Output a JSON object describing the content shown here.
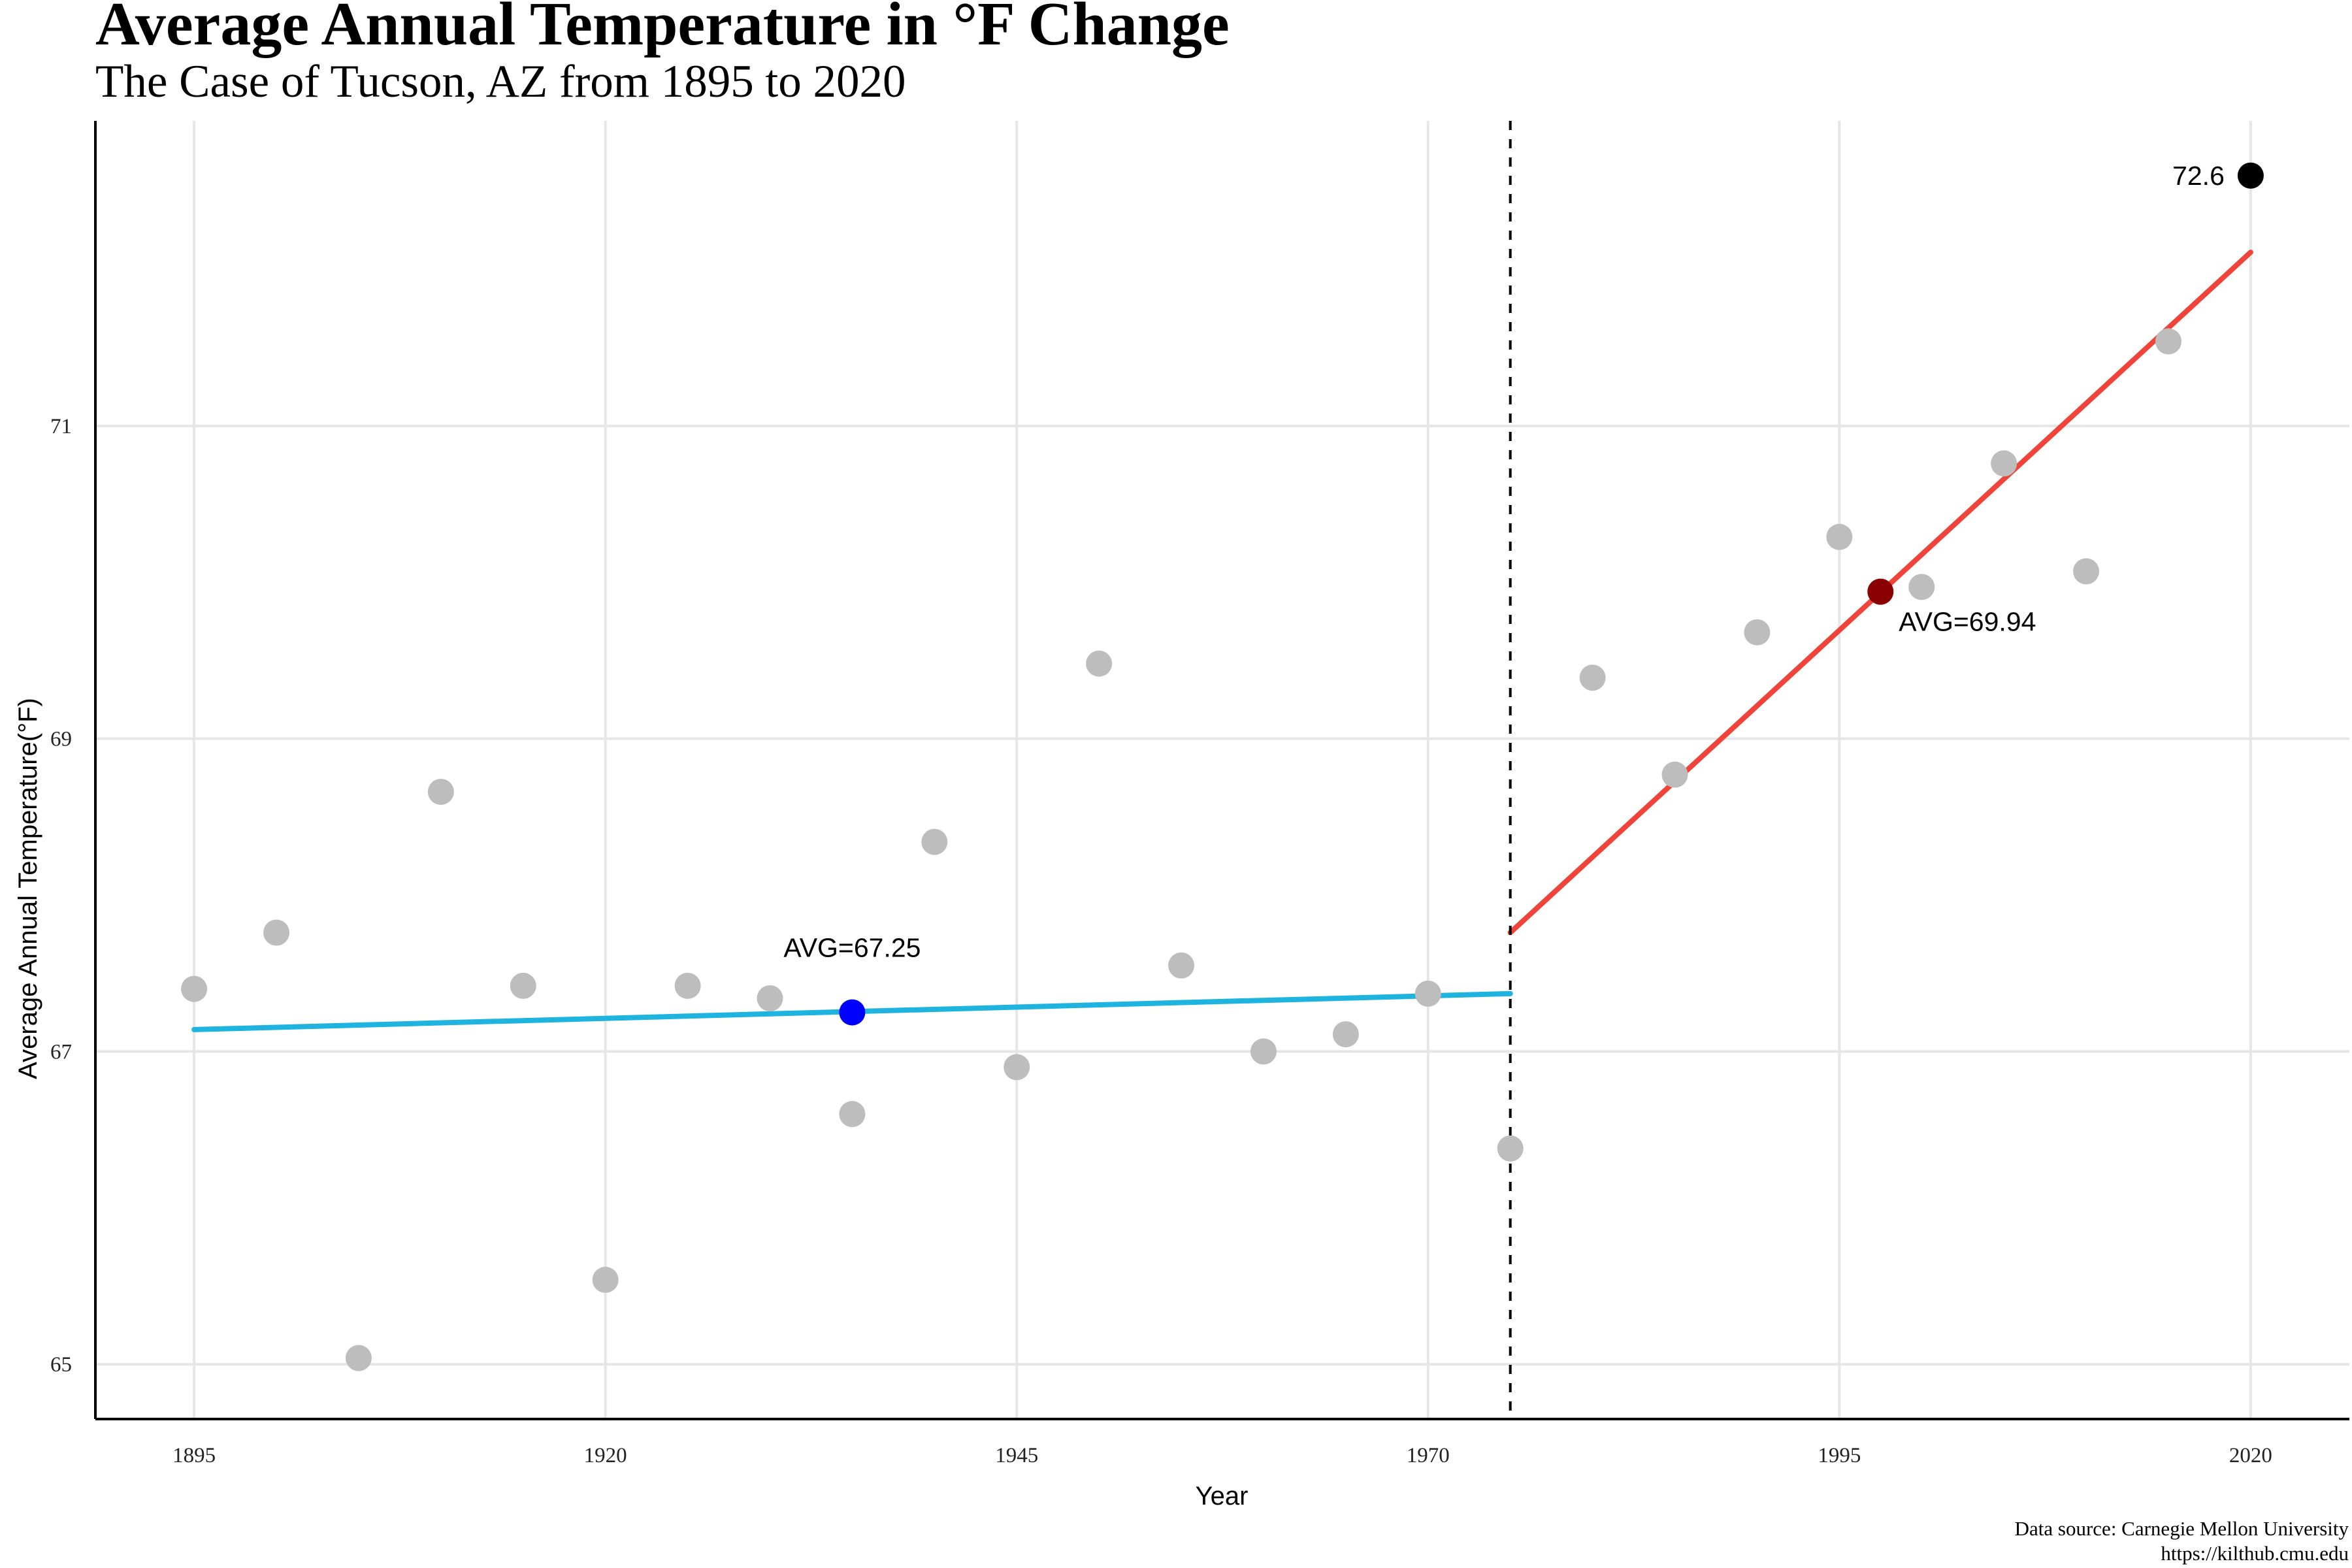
{
  "chart_data": {
    "type": "scatter",
    "title": "Average Annual Temperature in °F Change",
    "subtitle": "The Case of Tucson, AZ from 1895 to 2020",
    "xlabel": "Year",
    "ylabel": "Average Annual Temperature(°F)",
    "caption_lines": [
      "Data source: Carnegie Mellon University",
      "https://kilthub.cmu.edu"
    ],
    "xlim": [
      1889,
      2026
    ],
    "ylim": [
      64.65,
      72.95
    ],
    "x_ticks": [
      1895,
      1920,
      1945,
      1970,
      1995,
      2020
    ],
    "y_ticks": [
      65,
      67,
      69,
      71
    ],
    "grid": true,
    "points": [
      {
        "x": 1895,
        "y": 67.4
      },
      {
        "x": 1900,
        "y": 67.76
      },
      {
        "x": 1905,
        "y": 65.04
      },
      {
        "x": 1910,
        "y": 68.66
      },
      {
        "x": 1915,
        "y": 67.42
      },
      {
        "x": 1920,
        "y": 65.54
      },
      {
        "x": 1925,
        "y": 67.42
      },
      {
        "x": 1930,
        "y": 67.34
      },
      {
        "x": 1935,
        "y": 66.6
      },
      {
        "x": 1940,
        "y": 68.34
      },
      {
        "x": 1945,
        "y": 66.9
      },
      {
        "x": 1950,
        "y": 69.48
      },
      {
        "x": 1955,
        "y": 67.55
      },
      {
        "x": 1960,
        "y": 67.0
      },
      {
        "x": 1965,
        "y": 67.11
      },
      {
        "x": 1970,
        "y": 67.37
      },
      {
        "x": 1975,
        "y": 66.38
      },
      {
        "x": 1980,
        "y": 69.39
      },
      {
        "x": 1985,
        "y": 68.77
      },
      {
        "x": 1990,
        "y": 69.68
      },
      {
        "x": 1995,
        "y": 70.29
      },
      {
        "x": 2000,
        "y": 69.97
      },
      {
        "x": 2005,
        "y": 70.76
      },
      {
        "x": 2010,
        "y": 70.07
      },
      {
        "x": 2015,
        "y": 71.54
      }
    ],
    "highlight_points": [
      {
        "x": 1935,
        "y": 67.25,
        "color": "#0000ff",
        "label": "AVG=67.25"
      },
      {
        "x": 1997.5,
        "y": 69.94,
        "color": "#8b0000",
        "label": "AVG=69.94"
      },
      {
        "x": 2020,
        "y": 72.6,
        "color": "#000000",
        "label": "72.6"
      }
    ],
    "trend_lines": [
      {
        "x": [
          1895,
          1975
        ],
        "y": [
          67.14,
          67.37
        ],
        "color": "#1fb4e0"
      },
      {
        "x": [
          1975,
          2020
        ],
        "y": [
          67.76,
          72.11
        ],
        "color": "#f0433a"
      }
    ],
    "vline": {
      "x": 1975,
      "style": "dashed"
    },
    "colors": {
      "points": "#bdbdbd",
      "axis": "#000000",
      "grid": "#e6e6e6"
    }
  }
}
